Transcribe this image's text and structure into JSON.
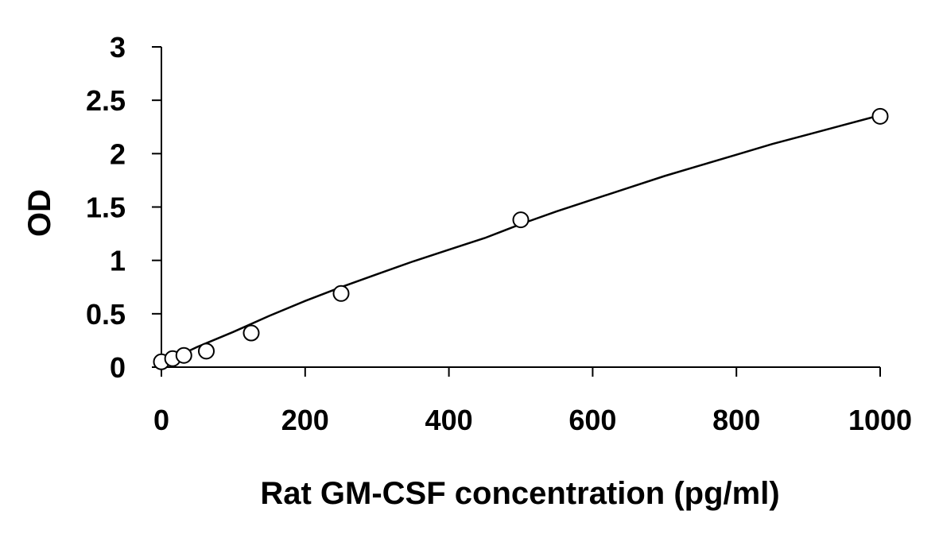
{
  "chart_data": {
    "type": "scatter",
    "title": "",
    "xlabel": "Rat GM-CSF concentration (pg/ml)",
    "ylabel": "OD",
    "xlim": [
      0,
      1000
    ],
    "ylim": [
      0,
      3
    ],
    "x_ticks": [
      0,
      200,
      400,
      600,
      800,
      1000
    ],
    "y_ticks": [
      0,
      0.5,
      1,
      1.5,
      2,
      2.5,
      3
    ],
    "x_tick_labels": [
      "0",
      "200",
      "400",
      "600",
      "800",
      "1000"
    ],
    "y_tick_labels": [
      "0",
      "0.5",
      "1",
      "1.5",
      "2",
      "2.5",
      "3"
    ],
    "grid": false,
    "legend": "none",
    "series": [
      {
        "marker": "open-circle",
        "x": [
          0,
          15.6,
          31.25,
          62.5,
          125,
          250,
          500,
          1000
        ],
        "y": [
          0.05,
          0.08,
          0.11,
          0.15,
          0.32,
          0.69,
          1.38,
          2.35
        ]
      }
    ],
    "fit_curve": {
      "x": [
        0,
        50,
        100,
        150,
        200,
        250,
        300,
        350,
        400,
        450,
        500,
        550,
        600,
        650,
        700,
        750,
        800,
        850,
        900,
        950,
        1000
      ],
      "y": [
        0.03,
        0.19,
        0.33,
        0.48,
        0.62,
        0.75,
        0.87,
        0.99,
        1.1,
        1.21,
        1.34,
        1.46,
        1.57,
        1.68,
        1.79,
        1.89,
        1.99,
        2.09,
        2.18,
        2.27,
        2.36
      ]
    },
    "colors": {
      "axis": "#000000",
      "marker_stroke": "#000000",
      "marker_fill": "#ffffff",
      "curve": "#000000"
    }
  }
}
